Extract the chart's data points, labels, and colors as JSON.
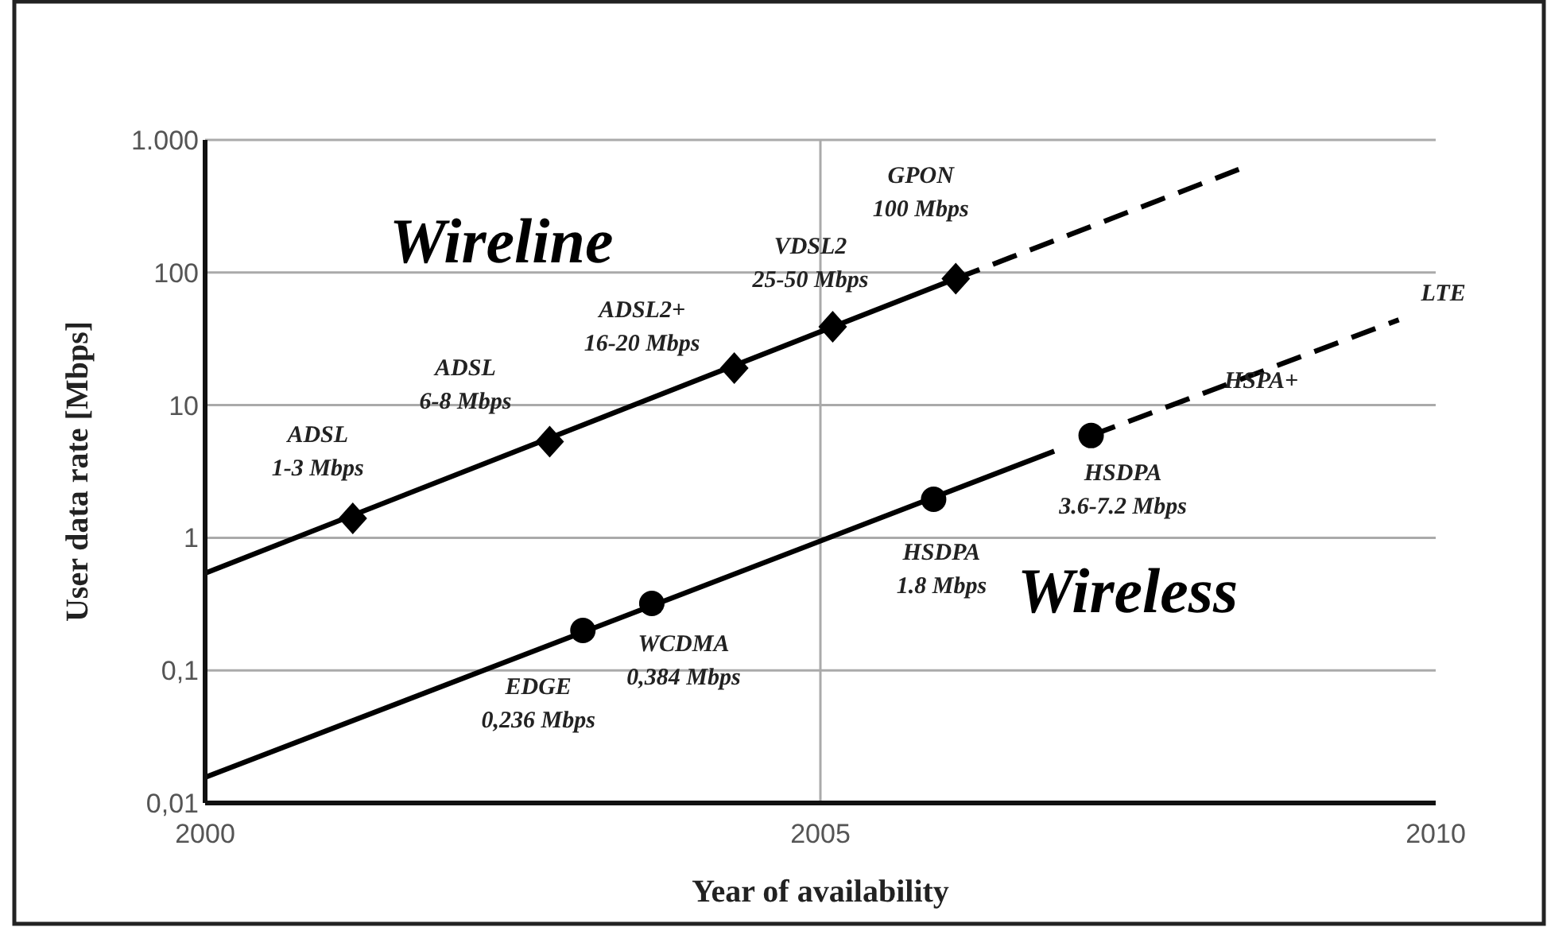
{
  "chart_data": {
    "type": "line",
    "xlabel": "Year of availability",
    "ylabel": "User data rate [Mbps]",
    "log": true,
    "grid": true,
    "xlim": [
      2000,
      2010
    ],
    "xticks": [
      2000,
      2005,
      2010
    ],
    "ylim": [
      0.01,
      1000
    ],
    "yticks": [
      {
        "value": 0.01,
        "label": "0,01"
      },
      {
        "value": 0.1,
        "label": "0,1"
      },
      1,
      10,
      100,
      {
        "value": 1000,
        "label": "1.000"
      }
    ],
    "series": [
      {
        "name": "Wireline",
        "color": "#000000",
        "x": [
          2000,
          2006.1
        ],
        "values": [
          0.54,
          90
        ],
        "marker": "none",
        "line_style": "solid"
      },
      {
        "color": "#000000",
        "x": [
          2006.1,
          2008.4
        ],
        "values": [
          90,
          600
        ],
        "marker": "none",
        "line_style": "dashed"
      },
      {
        "type": "scatter",
        "color": "#000000",
        "x": [
          2001.2,
          2002.8,
          2004.3,
          2005.1,
          2006.1
        ],
        "values": [
          1.4,
          5.3,
          19,
          39,
          90
        ],
        "marker": "diamond"
      },
      {
        "name": "Wireless",
        "color": "#000000",
        "x": [
          2000,
          2006.9
        ],
        "values": [
          0.0156,
          4.5
        ],
        "marker": "none",
        "line_style": "solid"
      },
      {
        "color": "#000000",
        "x": [
          2007.2,
          2009.7
        ],
        "values": [
          5.9,
          44
        ],
        "marker": "none",
        "line_style": "dashed"
      },
      {
        "type": "scatter",
        "color": "#000000",
        "x": [
          2003.07,
          2003.63,
          2005.92,
          2007.2
        ],
        "values": [
          0.2,
          0.32,
          1.95,
          5.9
        ],
        "marker": "circle"
      }
    ],
    "annotations": [
      {
        "text": "ADSL\n1-3 Mbps",
        "x": 2001.2,
        "y": 1.4
      },
      {
        "text": "ADSL\n6-8 Mbps",
        "x": 2002.8,
        "y": 5.3
      },
      {
        "text": "ADSL2+\n16-20 Mbps",
        "x": 2004.3,
        "y": 19
      },
      {
        "text": "VDSL2\n25-50 Mbps",
        "x": 2005.1,
        "y": 39
      },
      {
        "text": "GPON\n100 Mbps",
        "x": 2006.1,
        "y": 90
      },
      {
        "text": "EDGE\n0,236 Mbps",
        "x": 2003.07,
        "y": 0.2
      },
      {
        "text": "WCDMA\n0,384 Mbps",
        "x": 2003.63,
        "y": 0.32
      },
      {
        "text": "HSDPA\n1.8 Mbps",
        "x": 2005.92,
        "y": 1.95
      },
      {
        "text": "HSDPA\n3.6-7.2 Mbps",
        "x": 2007.2,
        "y": 5.9
      },
      {
        "text": "HSPA+",
        "x": 2008.1,
        "y": 12
      },
      {
        "text": "LTE",
        "x": 2009.7,
        "y": 44
      }
    ]
  }
}
